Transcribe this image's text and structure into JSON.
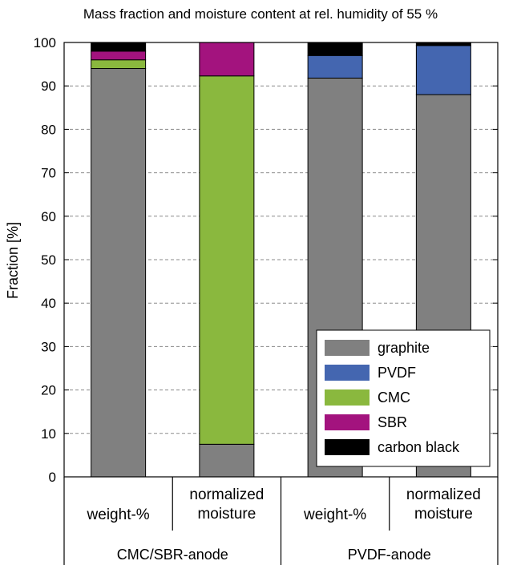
{
  "chart_data": {
    "type": "bar",
    "stacked": true,
    "title": "Mass fraction and moisture content at rel. humidity of 55 %",
    "ylabel": "Fraction [%]",
    "ylim": [
      0,
      100
    ],
    "yticks": [
      "0",
      "10",
      "20",
      "30",
      "40",
      "50",
      "60",
      "70",
      "80",
      "90",
      "100"
    ],
    "grid": "horizontal dashed",
    "categories": [
      {
        "lines": [
          "weight-%"
        ],
        "group": "CMC/SBR-anode"
      },
      {
        "lines": [
          "normalized",
          "moisture"
        ],
        "group": "CMC/SBR-anode"
      },
      {
        "lines": [
          "weight-%"
        ],
        "group": "PVDF-anode"
      },
      {
        "lines": [
          "normalized",
          "moisture"
        ],
        "group": "PVDF-anode"
      }
    ],
    "groups": [
      "CMC/SBR-anode",
      "PVDF-anode"
    ],
    "series": [
      {
        "name": "graphite",
        "color": "#808080",
        "values": [
          94,
          7.5,
          91.8,
          88
        ]
      },
      {
        "name": "PVDF",
        "color": "#4466b0",
        "values": [
          0,
          0,
          5.2,
          11.3
        ]
      },
      {
        "name": "CMC",
        "color": "#8ab83e",
        "values": [
          2,
          84.8,
          0,
          0
        ]
      },
      {
        "name": "SBR",
        "color": "#a3137e",
        "values": [
          2,
          7.7,
          0,
          0
        ]
      },
      {
        "name": "carbon black",
        "color": "#000000",
        "values": [
          2,
          0,
          3,
          0.7
        ]
      }
    ],
    "legend_position": "bottom-right"
  }
}
